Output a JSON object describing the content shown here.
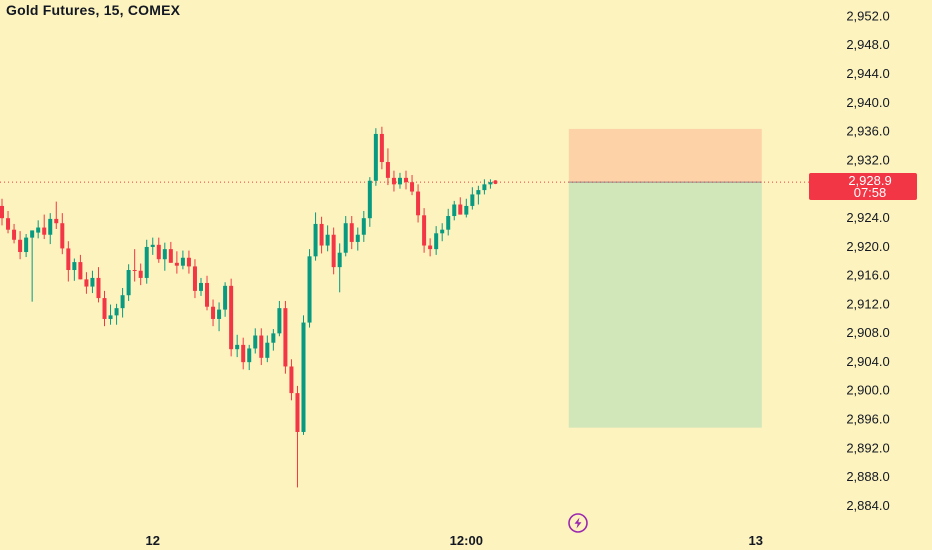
{
  "header": {
    "title": "Gold Futures, 15, COMEX"
  },
  "price_badge": {
    "price": "2,928.9",
    "countdown": "07:58"
  },
  "colors": {
    "background": "#FCF3BE",
    "up": "#089981",
    "down": "#F23645",
    "stop_zone": "#FCD2A6",
    "target_zone": "#D1E6B9",
    "badge": "#F23645",
    "lightning_icon": "#9C27B0"
  },
  "icons": {
    "events": "lightning-icon"
  },
  "chart_data": {
    "type": "candlestick",
    "title": "Gold Futures, 15, COMEX",
    "ylim": [
      2882.0,
      2954.0
    ],
    "y_ticks": [
      "2,952.0",
      "2,948.0",
      "2,944.0",
      "2,940.0",
      "2,936.0",
      "2,932.0",
      "2,928.0",
      "2,924.0",
      "2,920.0",
      "2,916.0",
      "2,912.0",
      "2,908.0",
      "2,904.0",
      "2,900.0",
      "2,896.0",
      "2,892.0",
      "2,888.0",
      "2,884.0"
    ],
    "x_ticks": [
      {
        "label": "12",
        "bar": 25
      },
      {
        "label": "12:00",
        "bar": 77
      },
      {
        "label": "13",
        "bar": 125
      }
    ],
    "current_price": 2928.9,
    "position": {
      "type": "short",
      "entry": 2928.9,
      "stop": 2936.3,
      "target": 2894.8,
      "start_bar": 94,
      "end_bar": 126
    },
    "ohlc": [
      [
        2925.6,
        2926.6,
        2922.9,
        2923.9
      ],
      [
        2923.9,
        2924.9,
        2921.8,
        2922.3
      ],
      [
        2922.3,
        2923.1,
        2920.4,
        2920.9
      ],
      [
        2920.9,
        2922.1,
        2918.2,
        2919.2
      ],
      [
        2919.2,
        2921.7,
        2918.5,
        2921.2
      ],
      [
        2921.2,
        2922.2,
        2912.3,
        2922.2
      ],
      [
        2921.9,
        2923.6,
        2921.1,
        2922.6
      ],
      [
        2922.6,
        2924.4,
        2921.0,
        2921.6
      ],
      [
        2921.6,
        2924.6,
        2920.3,
        2923.8
      ],
      [
        2923.8,
        2926.2,
        2922.4,
        2923.2
      ],
      [
        2923.2,
        2924.6,
        2918.9,
        2919.7
      ],
      [
        2919.7,
        2920.7,
        2915.1,
        2916.7
      ],
      [
        2916.7,
        2918.3,
        2915.2,
        2917.8
      ],
      [
        2917.8,
        2918.8,
        2915.4,
        2915.4
      ],
      [
        2915.4,
        2916.4,
        2913.4,
        2914.4
      ],
      [
        2914.4,
        2916.6,
        2913.5,
        2915.6
      ],
      [
        2915.6,
        2917.1,
        2912.2,
        2912.8
      ],
      [
        2912.8,
        2913.8,
        2908.9,
        2909.9
      ],
      [
        2909.9,
        2911.9,
        2909.1,
        2910.4
      ],
      [
        2910.4,
        2912.0,
        2909.1,
        2911.4
      ],
      [
        2911.4,
        2914.2,
        2910.1,
        2913.2
      ],
      [
        2913.2,
        2917.5,
        2912.4,
        2916.7
      ],
      [
        2916.7,
        2919.6,
        2915.1,
        2916.6
      ],
      [
        2916.6,
        2917.6,
        2914.6,
        2915.6
      ],
      [
        2915.6,
        2920.9,
        2914.8,
        2919.9
      ],
      [
        2919.9,
        2921.2,
        2918.8,
        2920.2
      ],
      [
        2920.2,
        2921.2,
        2917.7,
        2918.2
      ],
      [
        2918.2,
        2920.5,
        2916.6,
        2919.6
      ],
      [
        2919.6,
        2920.6,
        2917.7,
        2917.7
      ],
      [
        2917.7,
        2919.3,
        2916.2,
        2917.3
      ],
      [
        2917.3,
        2919.4,
        2916.8,
        2918.4
      ],
      [
        2918.4,
        2919.4,
        2916.2,
        2917.2
      ],
      [
        2917.2,
        2918.2,
        2912.8,
        2913.8
      ],
      [
        2913.8,
        2915.6,
        2913.1,
        2914.9
      ],
      [
        2914.9,
        2915.9,
        2911.1,
        2911.6
      ],
      [
        2911.6,
        2912.6,
        2908.9,
        2909.9
      ],
      [
        2909.9,
        2912.2,
        2908.2,
        2911.2
      ],
      [
        2911.2,
        2915.0,
        2910.2,
        2914.5
      ],
      [
        2914.5,
        2915.5,
        2904.7,
        2905.7
      ],
      [
        2905.7,
        2907.7,
        2904.6,
        2906.3
      ],
      [
        2906.3,
        2907.3,
        2902.9,
        2903.9
      ],
      [
        2903.9,
        2906.3,
        2902.8,
        2905.8
      ],
      [
        2905.8,
        2908.6,
        2905.1,
        2907.6
      ],
      [
        2907.6,
        2908.6,
        2903.5,
        2904.5
      ],
      [
        2904.5,
        2907.6,
        2903.9,
        2906.6
      ],
      [
        2906.6,
        2908.5,
        2905.5,
        2907.9
      ],
      [
        2907.9,
        2912.4,
        2907.5,
        2911.4
      ],
      [
        2911.4,
        2912.4,
        2902.3,
        2903.3
      ],
      [
        2903.3,
        2904.3,
        2898.6,
        2899.6
      ],
      [
        2899.6,
        2900.6,
        2886.5,
        2894.2
      ],
      [
        2894.2,
        2910.4,
        2893.8,
        2909.4
      ],
      [
        2909.4,
        2919.6,
        2908.7,
        2918.6
      ],
      [
        2918.6,
        2924.7,
        2918.0,
        2923.1
      ],
      [
        2923.1,
        2924.1,
        2919.0,
        2920.1
      ],
      [
        2920.1,
        2922.9,
        2919.3,
        2921.6
      ],
      [
        2921.6,
        2922.6,
        2916.1,
        2917.1
      ],
      [
        2917.1,
        2920.4,
        2913.6,
        2919.1
      ],
      [
        2919.1,
        2924.2,
        2918.6,
        2923.2
      ],
      [
        2923.2,
        2924.2,
        2919.6,
        2920.6
      ],
      [
        2920.6,
        2922.6,
        2919.4,
        2921.6
      ],
      [
        2921.6,
        2924.9,
        2920.6,
        2923.9
      ],
      [
        2923.9,
        2929.6,
        2922.7,
        2929.1
      ],
      [
        2929.1,
        2936.4,
        2928.4,
        2935.6
      ],
      [
        2935.6,
        2936.6,
        2930.7,
        2931.7
      ],
      [
        2931.7,
        2933.6,
        2928.5,
        2929.5
      ],
      [
        2929.5,
        2930.5,
        2927.6,
        2928.6
      ],
      [
        2928.6,
        2930.2,
        2928.0,
        2929.5
      ],
      [
        2929.5,
        2930.5,
        2927.9,
        2928.9
      ],
      [
        2928.9,
        2929.9,
        2927.1,
        2927.6
      ],
      [
        2927.6,
        2928.6,
        2923.3,
        2924.3
      ],
      [
        2924.3,
        2925.3,
        2919.1,
        2920.1
      ],
      [
        2920.1,
        2921.1,
        2918.6,
        2919.6
      ],
      [
        2919.6,
        2922.8,
        2918.8,
        2921.8
      ],
      [
        2921.8,
        2923.2,
        2920.7,
        2922.3
      ],
      [
        2922.3,
        2925.2,
        2921.5,
        2924.2
      ],
      [
        2924.2,
        2926.3,
        2923.6,
        2925.8
      ],
      [
        2925.8,
        2926.8,
        2924.4,
        2924.4
      ],
      [
        2924.4,
        2926.6,
        2924.0,
        2925.6
      ],
      [
        2925.6,
        2928.2,
        2925.1,
        2927.2
      ],
      [
        2927.2,
        2928.4,
        2925.8,
        2927.8
      ],
      [
        2927.8,
        2929.3,
        2927.2,
        2928.6
      ],
      [
        2928.6,
        2929.3,
        2928.0,
        2928.9
      ]
    ]
  }
}
